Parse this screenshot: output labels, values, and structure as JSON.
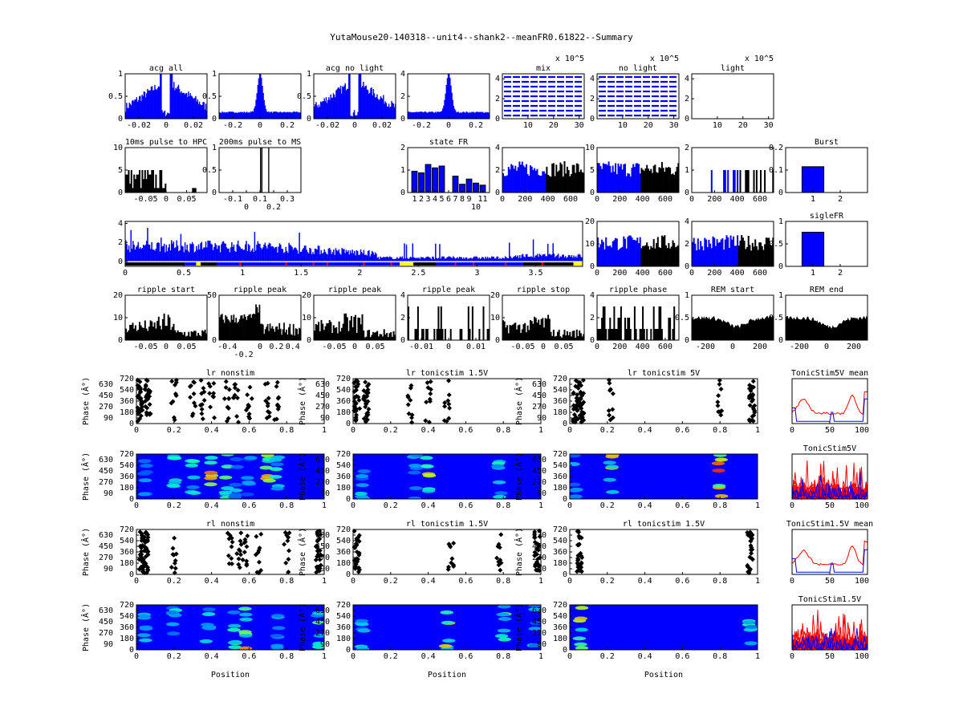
{
  "figure_title": "YutaMouse20-140318--unit4--shank2--meanFR0.61822--Summary",
  "colors": {
    "blue": "#0000ff",
    "black": "#000000",
    "red": "#ff0000",
    "yellow": "#ffff00",
    "green": "#00c000"
  },
  "chart_data": [
    {
      "id": "acg_all",
      "type": "bar",
      "title": "acg all",
      "xlim": [
        -0.03,
        0.03
      ],
      "ylim": [
        0,
        1
      ],
      "xticks": [
        "-0.02",
        "0",
        "0.02"
      ],
      "yticks": [
        "0",
        "0.5",
        "1"
      ],
      "color": "#0000ff",
      "shape": "acg_dip",
      "values_desc": "autocorrelogram, normalized; peaks at ±0.005 s reaching 1, dip near 0"
    },
    {
      "id": "acg_200",
      "type": "bar",
      "title": "",
      "xlim": [
        -0.3,
        0.3
      ],
      "ylim": [
        0,
        1
      ],
      "xticks": [
        "-0.2",
        "0",
        "0.2"
      ],
      "yticks": [
        "0",
        "0.5",
        "1"
      ],
      "color": "#0000ff",
      "shape": "acg_peak",
      "values_desc": "wide-window autocorrelogram, central peak 1, baseline ~0.15"
    },
    {
      "id": "acg_nolight",
      "type": "bar",
      "title": "acg no light",
      "xlim": [
        -0.03,
        0.03
      ],
      "ylim": [
        0,
        1
      ],
      "xticks": [
        "-0.02",
        "0",
        "0.02"
      ],
      "yticks": [
        "0",
        "0.5",
        "1"
      ],
      "color": "#0000ff",
      "shape": "acg_dip"
    },
    {
      "id": "acg_nolight_wide",
      "type": "bar",
      "title": "",
      "xlim": [
        -0.3,
        0.3
      ],
      "ylim": [
        0,
        4
      ],
      "xticks": [
        "-0.2",
        "0",
        "0.2"
      ],
      "yticks": [
        "0",
        "2",
        "4"
      ],
      "color": "#0000ff",
      "shape": "acg_peak"
    },
    {
      "id": "mix",
      "type": "line",
      "title": "mix",
      "multiplier": "x 10^5",
      "xlim": [
        0,
        32
      ],
      "ylim": [
        0,
        4.5
      ],
      "xticks": [
        "10",
        "20",
        "30"
      ],
      "yticks": [
        "0",
        "2",
        "4"
      ],
      "color": "#0000ff",
      "shape": "contours"
    },
    {
      "id": "nolight",
      "type": "line",
      "title": "no light",
      "multiplier": "x 10^5",
      "xlim": [
        0,
        32
      ],
      "ylim": [
        0,
        4.5
      ],
      "xticks": [
        "10",
        "20",
        "30"
      ],
      "yticks": [
        "0",
        "2",
        "4"
      ],
      "color": "#0000ff",
      "shape": "contours"
    },
    {
      "id": "light",
      "type": "line",
      "title": "light",
      "multiplier": "x 10^5",
      "xlim": [
        0,
        32
      ],
      "ylim": [
        0,
        4.5
      ],
      "xticks": [
        "10",
        "20",
        "30"
      ],
      "yticks": [
        "0",
        "2",
        "4"
      ],
      "color": "#0000ff",
      "shape": "empty"
    },
    {
      "id": "pulse_hpc",
      "type": "bar",
      "title": "10ms pulse to HPC",
      "xlim": [
        -0.1,
        0.1
      ],
      "ylim": [
        0,
        10
      ],
      "xticks": [
        "-0.05",
        "0",
        "0.05"
      ],
      "yticks": [
        "0",
        "5",
        "10"
      ],
      "color": "#000000",
      "shape": "pulse_hpc"
    },
    {
      "id": "pulse_ms",
      "type": "bar",
      "title": "200ms pulse to MS",
      "xlim": [
        -0.2,
        0.4
      ],
      "ylim": [
        0,
        1
      ],
      "xticks": [
        "-0.1",
        "0",
        "0.1",
        "0.2",
        "0.3"
      ],
      "yticks": [
        "0",
        "0.5",
        "1"
      ],
      "color": "#000000",
      "shape": "pulse_ms"
    },
    {
      "id": "state_fr",
      "type": "bar",
      "title": "state FR",
      "xlim": [
        0,
        12
      ],
      "ylim": [
        0,
        2
      ],
      "xticks": [
        "1",
        "2",
        "3",
        "4",
        "5",
        "6",
        "7",
        "8",
        "9",
        "10",
        "11"
      ],
      "yticks": [
        "0",
        "1",
        "2"
      ],
      "color": "#0000ff",
      "categories": [
        "1",
        "2",
        "3",
        "4",
        "5",
        "6",
        "7",
        "8",
        "9",
        "10",
        "11"
      ],
      "values": [
        0.95,
        0.88,
        1.25,
        1.1,
        1.18,
        0,
        0.73,
        0.37,
        0.6,
        0.42,
        0.33
      ]
    },
    {
      "id": "isi_mix",
      "type": "bar",
      "title": "",
      "xlim": [
        0,
        720
      ],
      "ylim": [
        0,
        4
      ],
      "xticks": [
        "0",
        "200",
        "400",
        "600"
      ],
      "yticks": [
        "0",
        "2",
        "4"
      ],
      "color": "#0000ff",
      "shape": "split_blue_black",
      "split": 380
    },
    {
      "id": "isi_nolight",
      "type": "bar",
      "title": "",
      "xlim": [
        0,
        720
      ],
      "ylim": [
        0,
        10
      ],
      "xticks": [
        "0",
        "200",
        "400",
        "600"
      ],
      "yticks": [
        "0",
        "5",
        "10"
      ],
      "color": "#0000ff",
      "shape": "split_blue_black",
      "split": 380
    },
    {
      "id": "isi_light",
      "type": "bar",
      "title": "",
      "xlim": [
        0,
        720
      ],
      "ylim": [
        0,
        2
      ],
      "xticks": [
        "0",
        "200",
        "400",
        "600"
      ],
      "yticks": [
        "0",
        "1",
        "2"
      ],
      "color": "#0000ff",
      "shape": "sparse_split",
      "split": 420
    },
    {
      "id": "burst",
      "type": "bar",
      "title": "Burst",
      "xlim": [
        0,
        3
      ],
      "ylim": [
        0,
        0.2
      ],
      "xticks": [
        "1",
        "2"
      ],
      "yticks": [
        "0",
        "0.1",
        "0.2"
      ],
      "color": "#0000ff",
      "categories": [
        "1"
      ],
      "values": [
        0.115
      ]
    },
    {
      "id": "fr_time",
      "type": "bar",
      "title": "",
      "xlim": [
        0,
        3.9
      ],
      "ylim": [
        -0.5,
        4.2
      ],
      "xticks": [
        "0",
        "0.5",
        "1",
        "1.5",
        "2",
        "2.5",
        "3",
        "3.5"
      ],
      "yticks": [
        "0",
        "2",
        "4"
      ],
      "color": "#0000ff",
      "shape": "fr_time"
    },
    {
      "id": "isi_mix2",
      "type": "bar",
      "title": "",
      "xlim": [
        0,
        720
      ],
      "ylim": [
        0,
        20
      ],
      "xticks": [
        "0",
        "200",
        "400",
        "600"
      ],
      "yticks": [
        "0",
        "10",
        "20"
      ],
      "color": "#0000ff",
      "shape": "split_blue_black",
      "split": 380
    },
    {
      "id": "isi_nolight2",
      "type": "bar",
      "title": "",
      "xlim": [
        0,
        720
      ],
      "ylim": [
        0,
        4
      ],
      "xticks": [
        "0",
        "200",
        "400",
        "600"
      ],
      "yticks": [
        "0",
        "2",
        "4"
      ],
      "color": "#0000ff",
      "shape": "split_blue_black2",
      "split": 400
    },
    {
      "id": "siglefr",
      "type": "bar",
      "title": "sigleFR",
      "xlim": [
        0,
        3
      ],
      "ylim": [
        0,
        1
      ],
      "xticks": [
        "1",
        "2"
      ],
      "yticks": [
        "0",
        "0.5",
        "1"
      ],
      "color": "#0000ff",
      "categories": [
        "1"
      ],
      "values": [
        0.76
      ]
    },
    {
      "id": "ripple_start",
      "type": "bar",
      "title": "ripple start",
      "xlim": [
        -0.1,
        0.1
      ],
      "ylim": [
        0,
        20
      ],
      "xticks": [
        "-0.05",
        "0",
        "0.05"
      ],
      "yticks": [
        "0",
        "10",
        "20"
      ],
      "color": "#000000",
      "shape": "ripple1"
    },
    {
      "id": "ripple_peak1",
      "type": "bar",
      "title": "ripple peak",
      "xlim": [
        -0.5,
        0.5
      ],
      "ylim": [
        0,
        50
      ],
      "xticks": [
        "-0.4",
        "-0.2",
        "0",
        "0.2",
        "0.4"
      ],
      "yticks": [
        "0",
        "50"
      ],
      "color": "#000000",
      "shape": "ripple2"
    },
    {
      "id": "ripple_peak2",
      "type": "bar",
      "title": "ripple peak",
      "xlim": [
        -0.1,
        0.1
      ],
      "ylim": [
        0,
        20
      ],
      "xticks": [
        "-0.05",
        "0",
        "0.05"
      ],
      "yticks": [
        "0",
        "10",
        "20"
      ],
      "color": "#000000",
      "shape": "ripple1"
    },
    {
      "id": "ripple_peak3",
      "type": "bar",
      "title": "ripple peak",
      "xlim": [
        -0.015,
        0.015
      ],
      "ylim": [
        0,
        4
      ],
      "xticks": [
        "-0.01",
        "0",
        "0.01"
      ],
      "yticks": [
        "0",
        "2",
        "4"
      ],
      "color": "#000000",
      "shape": "ripple_sparse"
    },
    {
      "id": "ripple_stop",
      "type": "bar",
      "title": "ripple stop",
      "xlim": [
        -0.1,
        0.1
      ],
      "ylim": [
        0,
        20
      ],
      "xticks": [
        "-0.05",
        "0",
        "0.05"
      ],
      "yticks": [
        "0",
        "10",
        "20"
      ],
      "color": "#000000",
      "shape": "ripple1"
    },
    {
      "id": "ripple_phase",
      "type": "bar",
      "title": "ripple phase",
      "xlim": [
        0,
        720
      ],
      "ylim": [
        0,
        4
      ],
      "xticks": [
        "0",
        "200",
        "400",
        "600"
      ],
      "yticks": [
        "0",
        "2",
        "4"
      ],
      "color": "#000000",
      "shape": "ripple_phase"
    },
    {
      "id": "rem_start",
      "type": "area",
      "title": "REM start",
      "xlim": [
        -300,
        300
      ],
      "ylim": [
        0,
        1
      ],
      "xticks": [
        "-200",
        "0",
        "200"
      ],
      "yticks": [
        "0",
        "0.5",
        "1"
      ],
      "color": "#000000",
      "shape": "rem"
    },
    {
      "id": "rem_end",
      "type": "area",
      "title": "REM end",
      "xlim": [
        -300,
        300
      ],
      "ylim": [
        0,
        1
      ],
      "xticks": [
        "-200",
        "0",
        "200"
      ],
      "yticks": [
        "0",
        "0.5",
        "1"
      ],
      "color": "#000000",
      "shape": "rem"
    },
    {
      "id": "lr_nonstim",
      "type": "scatter",
      "title": "lr nonstim",
      "xlim": [
        0,
        1
      ],
      "ylim": [
        0,
        720
      ],
      "xticks": [
        "0",
        "0.2",
        "0.4",
        "0.6",
        "0.8",
        "1"
      ],
      "yticks": [
        "0",
        "90",
        "180",
        "270",
        "360",
        "450",
        "540",
        "630",
        "720"
      ],
      "ylabel": "Phase (Â°)",
      "shape": "scatter_dense"
    },
    {
      "id": "lr_tonic15",
      "type": "scatter",
      "title": "lr tonicstim 1.5V",
      "xlim": [
        0,
        1
      ],
      "ylim": [
        0,
        720
      ],
      "xticks": [
        "0",
        "0.2",
        "0.4",
        "0.6",
        "0.8",
        "1"
      ],
      "yticks": [
        "0",
        "90",
        "180",
        "270",
        "360",
        "450",
        "540",
        "630",
        "720"
      ],
      "ylabel": "Phase (Â°)",
      "shape": "scatter_mid"
    },
    {
      "id": "lr_tonic5",
      "type": "scatter",
      "title": "lr tonicstim 5V",
      "xlim": [
        0,
        1
      ],
      "ylim": [
        0,
        720
      ],
      "xticks": [
        "0",
        "0.2",
        "0.4",
        "0.6",
        "0.8",
        "1"
      ],
      "yticks": [
        "0",
        "90",
        "180",
        "270",
        "360",
        "450",
        "540",
        "630",
        "720"
      ],
      "ylabel": "Phase (Â°)",
      "shape": "scatter_sparse"
    },
    {
      "id": "tonic5_mean",
      "type": "line",
      "title": "TonicStim5V mean",
      "xlim": [
        0,
        100
      ],
      "ylim": [
        0,
        1
      ],
      "xticks": [
        "0",
        "50",
        "100"
      ],
      "yticks": [],
      "shape": "mean_lines1"
    },
    {
      "id": "lr_nonstim_map",
      "type": "heatmap",
      "title": "",
      "xlim": [
        0,
        1
      ],
      "ylim": [
        0,
        720
      ],
      "xticks": [
        "0",
        "0.2",
        "0.4",
        "0.6",
        "0.8",
        "1"
      ],
      "yticks": [
        "0",
        "90",
        "180",
        "270",
        "360",
        "450",
        "540",
        "630",
        "720"
      ],
      "ylabel": "Phase (Â°)",
      "shape": "heat_dense"
    },
    {
      "id": "lr_tonic15_map",
      "type": "heatmap",
      "title": "",
      "xlim": [
        0,
        1
      ],
      "ylim": [
        0,
        720
      ],
      "xticks": [
        "0",
        "0.2",
        "0.4",
        "0.6",
        "0.8",
        "1"
      ],
      "yticks": [
        "0",
        "90",
        "180",
        "270",
        "360",
        "450",
        "540",
        "630",
        "720"
      ],
      "ylabel": "Phase (Â°)",
      "shape": "heat_mid"
    },
    {
      "id": "lr_tonic5_map",
      "type": "heatmap",
      "title": "",
      "xlim": [
        0,
        1
      ],
      "ylim": [
        0,
        720
      ],
      "xticks": [
        "0",
        "0.2",
        "0.4",
        "0.6",
        "0.8",
        "1"
      ],
      "yticks": [
        "0",
        "90",
        "180",
        "270",
        "360",
        "450",
        "540",
        "630",
        "720"
      ],
      "ylabel": "Phase (Â°)",
      "shape": "heat_sparse"
    },
    {
      "id": "tonic5_all",
      "type": "line",
      "title": "TonicStim5V",
      "xlim": [
        0,
        100
      ],
      "ylim": [
        0,
        1
      ],
      "xticks": [
        "0",
        "50",
        "100"
      ],
      "yticks": [],
      "shape": "many_lines"
    },
    {
      "id": "rl_nonstim",
      "type": "scatter",
      "title": "rl nonstim",
      "xlim": [
        0,
        1
      ],
      "ylim": [
        0,
        720
      ],
      "xticks": [
        "0",
        "0.2",
        "0.4",
        "0.6",
        "0.8",
        "1"
      ],
      "yticks": [
        "0",
        "90",
        "180",
        "270",
        "360",
        "450",
        "540",
        "630",
        "720"
      ],
      "ylabel": "Phase (Â°)",
      "shape": "scatter_rl"
    },
    {
      "id": "rl_tonic15",
      "type": "scatter",
      "title": "rl tonicstim 1.5V",
      "xlim": [
        0,
        1
      ],
      "ylim": [
        0,
        720
      ],
      "xticks": [
        "0",
        "0.2",
        "0.4",
        "0.6",
        "0.8",
        "1"
      ],
      "yticks": [
        "0",
        "90",
        "180",
        "270",
        "360",
        "450",
        "540",
        "630",
        "720"
      ],
      "ylabel": "Phase (Â°)",
      "shape": "scatter_rl_sparse"
    },
    {
      "id": "rl_tonic5",
      "type": "scatter",
      "title": "rl tonicstim 1.5V",
      "xlim": [
        0,
        1
      ],
      "ylim": [
        0,
        720
      ],
      "xticks": [
        "0",
        "0.2",
        "0.4",
        "0.6",
        "0.8",
        "1"
      ],
      "yticks": [
        "0",
        "90",
        "180",
        "270",
        "360",
        "450",
        "540",
        "630",
        "720"
      ],
      "ylabel": "Phase (Â°)",
      "shape": "scatter_rl_ends"
    },
    {
      "id": "tonic15_mean",
      "type": "line",
      "title": "TonicStim1.5V mean",
      "xlim": [
        0,
        100
      ],
      "ylim": [
        0,
        1
      ],
      "xticks": [
        "0",
        "50",
        "100"
      ],
      "yticks": [],
      "shape": "mean_lines2"
    },
    {
      "id": "rl_nonstim_map",
      "type": "heatmap",
      "title": "",
      "xlabel": "Position",
      "xlim": [
        0,
        1
      ],
      "ylim": [
        0,
        720
      ],
      "xticks": [
        "0",
        "0.2",
        "0.4",
        "0.6",
        "0.8",
        "1"
      ],
      "yticks": [
        "0",
        "90",
        "180",
        "270",
        "360",
        "450",
        "540",
        "630",
        "720"
      ],
      "ylabel": "Phase (Â°)",
      "shape": "heat_rl"
    },
    {
      "id": "rl_tonic15_map",
      "type": "heatmap",
      "title": "",
      "xlabel": "Position",
      "xlim": [
        0,
        1
      ],
      "ylim": [
        0,
        720
      ],
      "xticks": [
        "0",
        "0.2",
        "0.4",
        "0.6",
        "0.8",
        "1"
      ],
      "yticks": [
        "0",
        "90",
        "180",
        "270",
        "360",
        "450",
        "540",
        "630",
        "720"
      ],
      "ylabel": "Phase (Â°)",
      "shape": "heat_rl_mid"
    },
    {
      "id": "rl_tonic5_map",
      "type": "heatmap",
      "title": "",
      "xlabel": "Position",
      "xlim": [
        0,
        1
      ],
      "ylim": [
        0,
        720
      ],
      "xticks": [
        "0",
        "0.2",
        "0.4",
        "0.6",
        "0.8",
        "1"
      ],
      "yticks": [
        "0",
        "90",
        "180",
        "270",
        "360",
        "450",
        "540",
        "630",
        "720"
      ],
      "ylabel": "Phase (Â°)",
      "shape": "heat_rl_ends"
    },
    {
      "id": "tonic15_all",
      "type": "line",
      "title": "TonicStim1.5V",
      "xlim": [
        0,
        100
      ],
      "ylim": [
        0,
        1
      ],
      "xticks": [
        "0",
        "50",
        "100"
      ],
      "yticks": [],
      "shape": "many_lines"
    }
  ]
}
